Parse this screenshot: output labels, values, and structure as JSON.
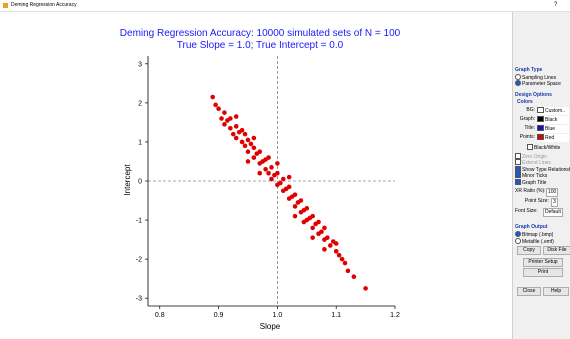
{
  "window": {
    "title": "Deming Regression Accuracy",
    "help": "?"
  },
  "chart_data": {
    "type": "scatter",
    "title": "Deming Regression Accuracy:  10000 simulated sets of N = 100",
    "subtitle": "True Slope = 1.0;  True Intercept = 0.0",
    "xlabel": "Slope",
    "ylabel": "Intercept",
    "color": "#e00000",
    "xlim": [
      0.78,
      1.2
    ],
    "ylim": [
      -3.2,
      3.2
    ],
    "xticks": [
      0.8,
      0.9,
      {
        "value": 1,
        "label": "1.0"
      },
      1.1,
      1.2
    ],
    "yticks": [
      -3,
      -2,
      -1,
      0,
      1,
      2,
      3
    ],
    "reference_x": 1,
    "reference_y": 0,
    "x": [
      0.89,
      0.895,
      0.9,
      0.905,
      0.91,
      0.91,
      0.915,
      0.92,
      0.92,
      0.925,
      0.93,
      0.93,
      0.935,
      0.94,
      0.94,
      0.945,
      0.95,
      0.95,
      0.955,
      0.96,
      0.96,
      0.965,
      0.97,
      0.97,
      0.975,
      0.98,
      0.98,
      0.985,
      0.99,
      0.99,
      0.995,
      1.0,
      1.0,
      1.005,
      1.01,
      1.01,
      1.015,
      1.02,
      1.02,
      1.025,
      1.03,
      1.03,
      1.035,
      1.04,
      1.04,
      1.045,
      1.05,
      1.05,
      1.055,
      1.06,
      1.06,
      1.065,
      1.07,
      1.07,
      1.075,
      1.08,
      1.08,
      1.085,
      1.09,
      1.095,
      1.1,
      1.1,
      1.105,
      1.11,
      1.115,
      1.12,
      1.13,
      1.15,
      0.96,
      0.97,
      1.0,
      1.03,
      0.95,
      1.06,
      0.93,
      1.08,
      0.985,
      1.02,
      0.945,
      1.045
    ],
    "y": [
      2.15,
      1.95,
      1.85,
      1.6,
      1.75,
      1.45,
      1.55,
      1.35,
      1.6,
      1.2,
      1.4,
      1.1,
      1.25,
      1.0,
      1.3,
      0.9,
      1.05,
      0.75,
      0.95,
      0.6,
      0.85,
      0.7,
      0.45,
      0.75,
      0.5,
      0.3,
      0.55,
      0.2,
      0.35,
      0.05,
      0.15,
      -0.1,
      0.2,
      -0.05,
      -0.25,
      0.05,
      -0.2,
      -0.45,
      -0.15,
      -0.4,
      -0.65,
      -0.35,
      -0.55,
      -0.8,
      -0.5,
      -0.75,
      -1.0,
      -0.7,
      -0.95,
      -1.2,
      -0.9,
      -1.1,
      -1.35,
      -1.05,
      -1.3,
      -1.5,
      -1.2,
      -1.45,
      -1.65,
      -1.55,
      -1.8,
      -1.6,
      -1.9,
      -2.0,
      -2.1,
      -2.3,
      -2.45,
      -2.75,
      1.1,
      0.2,
      0.45,
      -0.9,
      0.5,
      -1.45,
      1.65,
      -1.75,
      0.6,
      0.1,
      1.2,
      -1.05
    ]
  },
  "panel": {
    "graph_type": {
      "title": "Graph Type",
      "options": [
        {
          "label": "Sampling Lines",
          "checked": false
        },
        {
          "label": "Parameter Space",
          "checked": true
        }
      ]
    },
    "design": {
      "title": "Design Options",
      "colors_title": "Colors",
      "colors": [
        {
          "label": "BG:",
          "value": "Custom.."
        },
        {
          "label": "Graph:",
          "value": "Black"
        },
        {
          "label": "Title:",
          "value": "Blue"
        },
        {
          "label": "Points:",
          "value": "Red"
        }
      ],
      "bw_button": "Black/White",
      "checks": [
        {
          "label": "Zero Origin",
          "checked": false,
          "enabled": false
        },
        {
          "label": "Extend Lines",
          "checked": false,
          "enabled": false
        },
        {
          "label": "Show Type Relationship",
          "checked": true,
          "enabled": true
        },
        {
          "label": "Minor Ticks",
          "checked": true,
          "enabled": true
        },
        {
          "label": "Graph Title",
          "checked": true,
          "enabled": true
        }
      ],
      "fields": [
        {
          "label": "XR Ratio (%):",
          "value": 100
        },
        {
          "label": "Point Size:",
          "value": 3
        },
        {
          "label": "Font Size:",
          "value": "Default"
        }
      ]
    },
    "output": {
      "title": "Graph Output",
      "options": [
        {
          "label": "Bitmap (.bmp)",
          "checked": true
        },
        {
          "label": "Metafile (.emf)",
          "checked": false
        }
      ],
      "buttons": [
        "Copy",
        "Disk File",
        "Printer Setup",
        "Print",
        "Close",
        "Help"
      ]
    }
  }
}
